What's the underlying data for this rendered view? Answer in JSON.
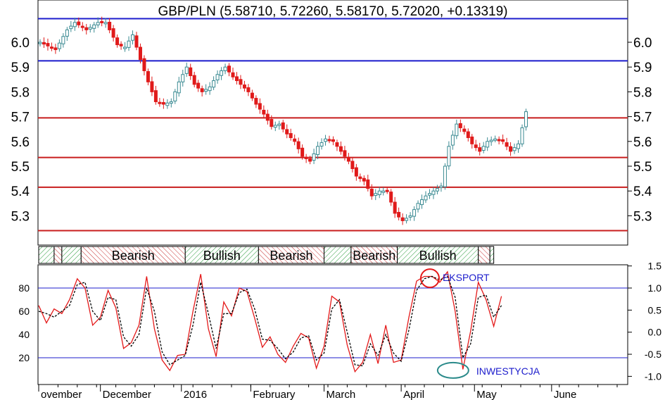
{
  "chart_data": [
    {
      "type": "candlestick",
      "title": "GBP/PLN (5.58710, 5.72260, 5.58170, 5.72020, +0.13319)",
      "ylim": [
        5.2,
        6.1
      ],
      "yticks": [
        "5.3",
        "5.4",
        "5.5",
        "5.6",
        "5.7",
        "5.8",
        "5.9",
        "6.0"
      ],
      "xticks": [
        "ovember",
        "December",
        "2016",
        "February",
        "March",
        "April",
        "May",
        "June"
      ],
      "horizontal_lines": [
        {
          "value": 6.095,
          "color": "#1c1ccc"
        },
        {
          "value": 5.925,
          "color": "#1c1ccc"
        },
        {
          "value": 5.695,
          "color": "#c81e1e"
        },
        {
          "value": 5.535,
          "color": "#c81e1e"
        },
        {
          "value": 5.415,
          "color": "#c81e1e"
        },
        {
          "value": 5.24,
          "color": "#c81e1e"
        }
      ],
      "close_path": [
        [
          0,
          6.0
        ],
        [
          4,
          5.97
        ],
        [
          7,
          6.05
        ],
        [
          9,
          6.08
        ],
        [
          12,
          6.05
        ],
        [
          15,
          6.08
        ],
        [
          17,
          6.08
        ],
        [
          20,
          5.99
        ],
        [
          22,
          5.98
        ],
        [
          24,
          6.03
        ],
        [
          26,
          5.93
        ],
        [
          28,
          5.84
        ],
        [
          30,
          5.76
        ],
        [
          32,
          5.75
        ],
        [
          34,
          5.76
        ],
        [
          36,
          5.84
        ],
        [
          38,
          5.9
        ],
        [
          40,
          5.83
        ],
        [
          42,
          5.8
        ],
        [
          44,
          5.82
        ],
        [
          46,
          5.87
        ],
        [
          48,
          5.9
        ],
        [
          50,
          5.86
        ],
        [
          52,
          5.83
        ],
        [
          54,
          5.8
        ],
        [
          56,
          5.75
        ],
        [
          58,
          5.71
        ],
        [
          60,
          5.66
        ],
        [
          62,
          5.67
        ],
        [
          64,
          5.63
        ],
        [
          66,
          5.6
        ],
        [
          68,
          5.54
        ],
        [
          70,
          5.52
        ],
        [
          72,
          5.58
        ],
        [
          74,
          5.61
        ],
        [
          76,
          5.6
        ],
        [
          78,
          5.56
        ],
        [
          80,
          5.52
        ],
        [
          82,
          5.46
        ],
        [
          84,
          5.44
        ],
        [
          86,
          5.38
        ],
        [
          88,
          5.4
        ],
        [
          90,
          5.4
        ],
        [
          92,
          5.31
        ],
        [
          94,
          5.28
        ],
        [
          96,
          5.3
        ],
        [
          98,
          5.35
        ],
        [
          100,
          5.38
        ],
        [
          102,
          5.4
        ],
        [
          104,
          5.42
        ],
        [
          106,
          5.58
        ],
        [
          108,
          5.67
        ],
        [
          110,
          5.64
        ],
        [
          112,
          5.59
        ],
        [
          114,
          5.56
        ],
        [
          116,
          5.6
        ],
        [
          118,
          5.61
        ],
        [
          120,
          5.6
        ],
        [
          122,
          5.56
        ],
        [
          124,
          5.59
        ],
        [
          126,
          5.72
        ]
      ]
    },
    {
      "type": "bar",
      "segments": [
        {
          "label": "",
          "state": "bullish",
          "start": 0,
          "end": 4
        },
        {
          "label": "",
          "state": "bearish",
          "start": 4,
          "end": 6
        },
        {
          "label": "",
          "state": "bullish",
          "start": 6,
          "end": 11
        },
        {
          "label": "Bearish",
          "state": "bearish",
          "start": 11,
          "end": 38
        },
        {
          "label": "Bullish",
          "state": "bullish",
          "start": 38,
          "end": 57
        },
        {
          "label": "Bearish",
          "state": "bearish",
          "start": 57,
          "end": 74
        },
        {
          "label": "",
          "state": "bullish",
          "start": 74,
          "end": 81
        },
        {
          "label": "Bearish",
          "state": "bearish",
          "start": 81,
          "end": 93
        },
        {
          "label": "Bullish",
          "state": "bullish",
          "start": 93,
          "end": 114
        },
        {
          "label": "",
          "state": "bearish",
          "start": 114,
          "end": 117
        },
        {
          "label": "",
          "state": "bullish",
          "start": 117,
          "end": 118
        }
      ]
    },
    {
      "type": "line",
      "ylim": [
        0,
        100
      ],
      "yticks_left": [
        "20",
        "40",
        "60",
        "80"
      ],
      "yticks_right": [
        "-1.0",
        "-0.5",
        "0.0",
        "0.5",
        "1.0",
        "1.5"
      ],
      "horizontal_lines": [
        {
          "value": 80,
          "color": "#1c1ccc"
        },
        {
          "value": 20,
          "color": "#1c1ccc"
        }
      ],
      "annotations": [
        {
          "text": "EKSPORT",
          "x": 102,
          "y": 89
        },
        {
          "text": "INWESTYCJA",
          "x": 108,
          "y": 14
        }
      ],
      "series": [
        {
          "color": "#e41a1a",
          "style": "solid",
          "values": [
            [
              0,
              65
            ],
            [
              2,
              50
            ],
            [
              4,
              62
            ],
            [
              6,
              58
            ],
            [
              8,
              70
            ],
            [
              10,
              88
            ],
            [
              12,
              80
            ],
            [
              14,
              48
            ],
            [
              16,
              55
            ],
            [
              18,
              78
            ],
            [
              20,
              63
            ],
            [
              22,
              28
            ],
            [
              24,
              33
            ],
            [
              26,
              48
            ],
            [
              28,
              90
            ],
            [
              30,
              45
            ],
            [
              32,
              18
            ],
            [
              34,
              9
            ],
            [
              36,
              22
            ],
            [
              38,
              23
            ],
            [
              40,
              60
            ],
            [
              42,
              92
            ],
            [
              44,
              45
            ],
            [
              46,
              21
            ],
            [
              48,
              68
            ],
            [
              50,
              56
            ],
            [
              52,
              80
            ],
            [
              54,
              77
            ],
            [
              56,
              54
            ],
            [
              58,
              29
            ],
            [
              60,
              38
            ],
            [
              62,
              23
            ],
            [
              64,
              16
            ],
            [
              66,
              30
            ],
            [
              68,
              41
            ],
            [
              70,
              37
            ],
            [
              72,
              11
            ],
            [
              74,
              30
            ],
            [
              76,
              73
            ],
            [
              78,
              68
            ],
            [
              80,
              31
            ],
            [
              82,
              8
            ],
            [
              84,
              16
            ],
            [
              86,
              40
            ],
            [
              88,
              15
            ],
            [
              90,
              48
            ],
            [
              92,
              16
            ],
            [
              94,
              18
            ],
            [
              96,
              55
            ],
            [
              98,
              86
            ],
            [
              100,
              90
            ],
            [
              102,
              90
            ],
            [
              104,
              85
            ],
            [
              106,
              94
            ],
            [
              108,
              60
            ],
            [
              110,
              10
            ],
            [
              112,
              43
            ],
            [
              114,
              85
            ],
            [
              116,
              70
            ],
            [
              118,
              47
            ],
            [
              120,
              73
            ]
          ]
        },
        {
          "color": "#000000",
          "style": "dashed",
          "values": [
            [
              0,
              60
            ],
            [
              2,
              58
            ],
            [
              4,
              55
            ],
            [
              6,
              60
            ],
            [
              8,
              65
            ],
            [
              10,
              83
            ],
            [
              12,
              85
            ],
            [
              14,
              60
            ],
            [
              16,
              52
            ],
            [
              18,
              72
            ],
            [
              20,
              70
            ],
            [
              22,
              38
            ],
            [
              24,
              30
            ],
            [
              26,
              40
            ],
            [
              28,
              80
            ],
            [
              30,
              60
            ],
            [
              32,
              25
            ],
            [
              34,
              14
            ],
            [
              36,
              18
            ],
            [
              38,
              22
            ],
            [
              40,
              48
            ],
            [
              42,
              85
            ],
            [
              44,
              58
            ],
            [
              46,
              28
            ],
            [
              48,
              58
            ],
            [
              50,
              58
            ],
            [
              52,
              76
            ],
            [
              54,
              79
            ],
            [
              56,
              62
            ],
            [
              58,
              36
            ],
            [
              60,
              35
            ],
            [
              62,
              28
            ],
            [
              64,
              19
            ],
            [
              66,
              25
            ],
            [
              68,
              37
            ],
            [
              70,
              39
            ],
            [
              72,
              18
            ],
            [
              74,
              24
            ],
            [
              76,
              62
            ],
            [
              78,
              70
            ],
            [
              80,
              42
            ],
            [
              82,
              14
            ],
            [
              84,
              13
            ],
            [
              86,
              32
            ],
            [
              88,
              22
            ],
            [
              90,
              40
            ],
            [
              92,
              24
            ],
            [
              94,
              17
            ],
            [
              96,
              44
            ],
            [
              98,
              78
            ],
            [
              100,
              88
            ],
            [
              102,
              90
            ],
            [
              104,
              87
            ],
            [
              106,
              90
            ],
            [
              108,
              72
            ],
            [
              110,
              20
            ],
            [
              112,
              32
            ],
            [
              114,
              72
            ],
            [
              116,
              74
            ],
            [
              118,
              55
            ],
            [
              120,
              65
            ]
          ]
        }
      ]
    }
  ]
}
